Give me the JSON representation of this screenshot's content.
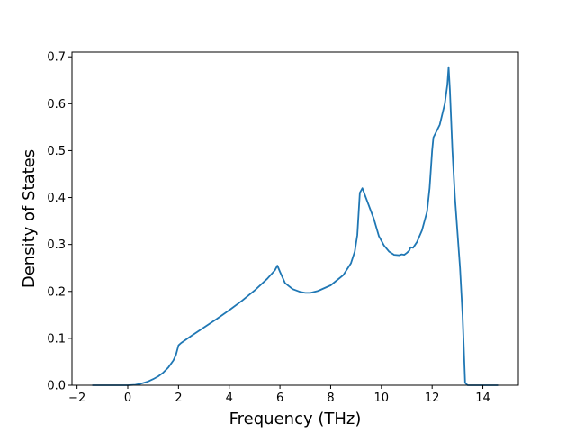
{
  "chart_data": {
    "type": "line",
    "title": "",
    "xlabel": "Frequency (THz)",
    "ylabel": "Density of States",
    "xlim": [
      -2.2,
      15.4
    ],
    "ylim": [
      0.0,
      0.71
    ],
    "xticks": [
      -2,
      0,
      2,
      4,
      6,
      8,
      10,
      12,
      14
    ],
    "xtick_labels": [
      "−2",
      "0",
      "2",
      "4",
      "6",
      "8",
      "10",
      "12",
      "14"
    ],
    "yticks": [
      0.0,
      0.1,
      0.2,
      0.3,
      0.4,
      0.5,
      0.6,
      0.7
    ],
    "ytick_labels": [
      "0.0",
      "0.1",
      "0.2",
      "0.3",
      "0.4",
      "0.5",
      "0.6",
      "0.7"
    ],
    "grid": false,
    "legend": "none",
    "series": [
      {
        "color": "#1f77b4",
        "x": [
          -1.4,
          0.0,
          0.3,
          0.5,
          0.8,
          1.0,
          1.2,
          1.4,
          1.6,
          1.8,
          1.9,
          2.0,
          2.1,
          2.5,
          3.0,
          3.5,
          4.0,
          4.5,
          5.0,
          5.5,
          5.8,
          5.9,
          6.0,
          6.2,
          6.5,
          6.8,
          7.0,
          7.2,
          7.5,
          8.0,
          8.5,
          8.8,
          8.95,
          9.05,
          9.15,
          9.25,
          9.4,
          9.7,
          9.9,
          10.1,
          10.3,
          10.5,
          10.7,
          10.8,
          10.9,
          11.0,
          11.1,
          11.15,
          11.25,
          11.4,
          11.6,
          11.8,
          11.9,
          12.0,
          12.05,
          12.3,
          12.5,
          12.6,
          12.65,
          12.7,
          12.8,
          12.9,
          13.1,
          13.2,
          13.3,
          13.4,
          14.6
        ],
        "values": [
          0.0,
          0.0,
          0.001,
          0.003,
          0.008,
          0.013,
          0.019,
          0.027,
          0.038,
          0.053,
          0.065,
          0.085,
          0.09,
          0.105,
          0.123,
          0.141,
          0.16,
          0.18,
          0.202,
          0.227,
          0.245,
          0.255,
          0.242,
          0.218,
          0.205,
          0.199,
          0.197,
          0.197,
          0.201,
          0.213,
          0.235,
          0.26,
          0.285,
          0.32,
          0.41,
          0.42,
          0.398,
          0.355,
          0.318,
          0.298,
          0.285,
          0.278,
          0.277,
          0.279,
          0.278,
          0.282,
          0.287,
          0.294,
          0.293,
          0.305,
          0.33,
          0.37,
          0.42,
          0.5,
          0.528,
          0.555,
          0.6,
          0.64,
          0.678,
          0.63,
          0.5,
          0.4,
          0.25,
          0.15,
          0.005,
          0.0,
          0.0
        ]
      }
    ]
  }
}
